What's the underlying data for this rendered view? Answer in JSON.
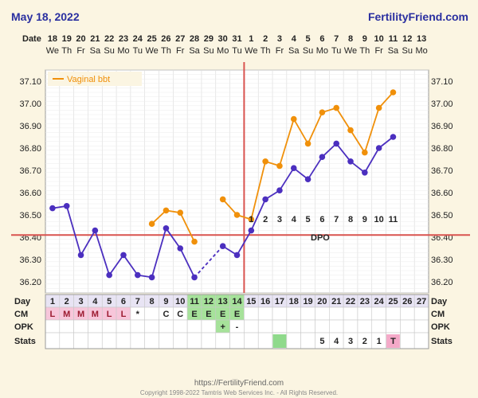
{
  "header": {
    "date": "May 18, 2022",
    "brand": "FertilityFriend.com"
  },
  "footer": {
    "url": "https://FertilityFriend.com",
    "copyright": "Copyright 1998-2022 Tamtris Web Services Inc. - All Rights Reserved."
  },
  "rows": {
    "date": "Date",
    "day": "Day",
    "cm": "CM",
    "opk": "OPK",
    "stats": "Stats"
  },
  "dpo_label": "DPO",
  "chart_data": {
    "type": "line",
    "y_ticks": [
      36.2,
      36.3,
      36.4,
      36.5,
      36.6,
      36.7,
      36.8,
      36.9,
      37.0,
      37.1
    ],
    "y_tick_labels": [
      "36.20",
      "36.30",
      "36.40",
      "36.50",
      "36.60",
      "36.70",
      "36.80",
      "36.90",
      "37.00",
      "37.10"
    ],
    "ylim": [
      36.15,
      37.15
    ],
    "dates": [
      "18",
      "19",
      "20",
      "21",
      "22",
      "23",
      "24",
      "25",
      "26",
      "27",
      "28",
      "29",
      "30",
      "31",
      "1",
      "2",
      "3",
      "4",
      "5",
      "6",
      "7",
      "8",
      "9",
      "10",
      "11",
      "12",
      "13"
    ],
    "weekdays": [
      "We",
      "Th",
      "Fr",
      "Sa",
      "Su",
      "Mo",
      "Tu",
      "We",
      "Th",
      "Fr",
      "Sa",
      "Su",
      "Mo",
      "Tu",
      "We",
      "Th",
      "Fr",
      "Sa",
      "Su",
      "Mo",
      "Tu",
      "We",
      "Th",
      "Fr",
      "Sa",
      "Su",
      "Mo"
    ],
    "cycle_days": [
      "1",
      "2",
      "3",
      "4",
      "5",
      "6",
      "7",
      "8",
      "9",
      "10",
      "11",
      "12",
      "13",
      "14",
      "15",
      "16",
      "17",
      "18",
      "19",
      "20",
      "21",
      "22",
      "23",
      "24",
      "25",
      "26",
      "27"
    ],
    "series": [
      {
        "name": "",
        "color": "#4B2FBF",
        "values": [
          36.53,
          36.54,
          36.32,
          36.43,
          36.23,
          36.32,
          36.23,
          36.22,
          36.44,
          36.35,
          36.22,
          null,
          36.36,
          36.32,
          36.43,
          36.57,
          36.61,
          36.71,
          36.66,
          36.76,
          36.82,
          36.74,
          36.69,
          36.8,
          36.85,
          null,
          null
        ],
        "dashed_segments": [
          [
            10,
            12
          ]
        ]
      },
      {
        "name": "Vaginal bbt",
        "color": "#F0900A",
        "values": [
          null,
          null,
          null,
          null,
          null,
          null,
          null,
          36.46,
          36.52,
          36.51,
          36.38,
          null,
          36.57,
          36.5,
          36.48,
          36.74,
          36.72,
          36.93,
          36.82,
          36.96,
          36.98,
          36.88,
          36.78,
          36.98,
          37.05,
          null,
          null
        ]
      }
    ],
    "coverline": 36.41,
    "ovulation_index": 13,
    "dpo_labels": [
      "1",
      "2",
      "3",
      "4",
      "5",
      "6",
      "7",
      "8",
      "9",
      "10",
      "11"
    ],
    "dpo_start_index": 14,
    "cm": [
      "L",
      "M",
      "M",
      "M",
      "L",
      "L",
      "*",
      "",
      "C",
      "C",
      "E",
      "E",
      "E",
      "E",
      "",
      "",
      "",
      "",
      "",
      "",
      "",
      "",
      "",
      "",
      "",
      "",
      ""
    ],
    "cm_pink": [
      0,
      5
    ],
    "cm_green": [
      10,
      13
    ],
    "opk": [
      "",
      "",
      "",
      "",
      "",
      "",
      "",
      "",
      "",
      "",
      "",
      "",
      "+",
      "-",
      "",
      "",
      "",
      "",
      "",
      "",
      "",
      "",
      "",
      "",
      "",
      "",
      ""
    ],
    "opk_green": [
      12,
      12
    ],
    "stats": [
      "",
      "",
      "",
      "",
      "",
      "",
      "",
      "",
      "",
      "",
      "",
      "",
      "",
      "",
      "",
      "",
      "",
      "",
      "",
      "5",
      "4",
      "3",
      "2",
      "1",
      "T",
      "",
      ""
    ],
    "stats_green": [
      16
    ],
    "stats_pink": [
      24
    ],
    "day_green": [
      10,
      13
    ],
    "grid": true,
    "legend": "top-left"
  }
}
